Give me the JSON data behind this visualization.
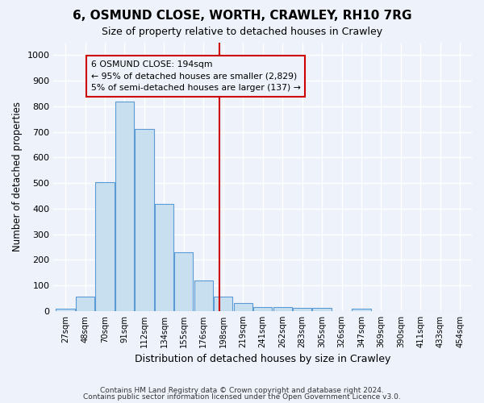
{
  "title": "6, OSMUND CLOSE, WORTH, CRAWLEY, RH10 7RG",
  "subtitle": "Size of property relative to detached houses in Crawley",
  "xlabel": "Distribution of detached houses by size in Crawley",
  "ylabel": "Number of detached properties",
  "bin_labels": [
    "27sqm",
    "48sqm",
    "70sqm",
    "91sqm",
    "112sqm",
    "134sqm",
    "155sqm",
    "176sqm",
    "198sqm",
    "219sqm",
    "241sqm",
    "262sqm",
    "283sqm",
    "305sqm",
    "326sqm",
    "347sqm",
    "369sqm",
    "390sqm",
    "411sqm",
    "433sqm",
    "454sqm"
  ],
  "bar_heights": [
    8,
    58,
    505,
    820,
    710,
    418,
    230,
    118,
    55,
    32,
    15,
    15,
    12,
    12,
    0,
    8,
    0,
    0,
    0,
    0,
    0
  ],
  "bar_color": "#c8dff0",
  "bar_edge_color": "#5b9bd5",
  "subject_line_color": "#cc0000",
  "annotation_text_line1": "6 OSMUND CLOSE: 194sqm",
  "annotation_text_line2": "← 95% of detached houses are smaller (2,829)",
  "annotation_text_line3": "5% of semi-detached houses are larger (137) →",
  "annotation_box_color": "#cc0000",
  "annotation_text_color": "#000000",
  "ylim": [
    0,
    1050
  ],
  "yticks": [
    0,
    100,
    200,
    300,
    400,
    500,
    600,
    700,
    800,
    900,
    1000
  ],
  "footer_line1": "Contains HM Land Registry data © Crown copyright and database right 2024.",
  "footer_line2": "Contains public sector information licensed under the Open Government Licence v3.0.",
  "background_color": "#eef2fb",
  "grid_color": "#ffffff"
}
